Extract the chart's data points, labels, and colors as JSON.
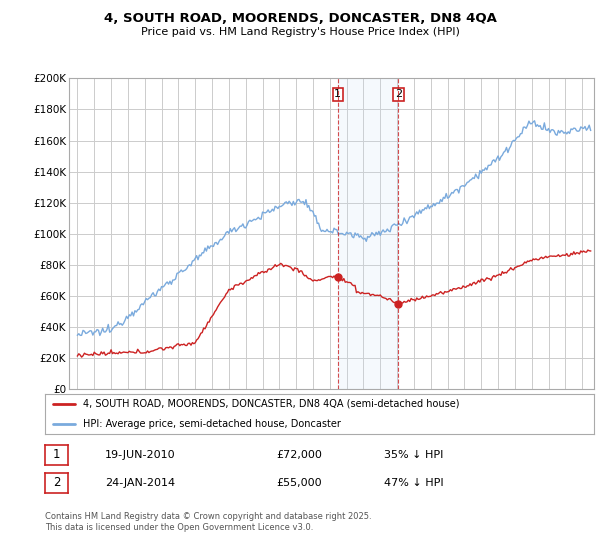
{
  "title_line1": "4, SOUTH ROAD, MOORENDS, DONCASTER, DN8 4QA",
  "title_line2": "Price paid vs. HM Land Registry's House Price Index (HPI)",
  "background_color": "#ffffff",
  "plot_bg_color": "#ffffff",
  "grid_color": "#cccccc",
  "hpi_color": "#7aaadd",
  "price_color": "#cc2222",
  "marker1_x": 2010.47,
  "marker2_x": 2014.07,
  "marker1_price": 72000,
  "marker2_price": 55000,
  "legend_label1": "4, SOUTH ROAD, MOORENDS, DONCASTER, DN8 4QA (semi-detached house)",
  "legend_label2": "HPI: Average price, semi-detached house, Doncaster",
  "table_row1": [
    "1",
    "19-JUN-2010",
    "£72,000",
    "35% ↓ HPI"
  ],
  "table_row2": [
    "2",
    "24-JAN-2014",
    "£55,000",
    "47% ↓ HPI"
  ],
  "footnote": "Contains HM Land Registry data © Crown copyright and database right 2025.\nThis data is licensed under the Open Government Licence v3.0.",
  "ylim": [
    0,
    200000
  ],
  "xlim_start": 1994.5,
  "xlim_end": 2025.7,
  "yticks": [
    0,
    20000,
    40000,
    60000,
    80000,
    100000,
    120000,
    140000,
    160000,
    180000,
    200000
  ],
  "ytick_labels": [
    "£0",
    "£20K",
    "£40K",
    "£60K",
    "£80K",
    "£100K",
    "£120K",
    "£140K",
    "£160K",
    "£180K",
    "£200K"
  ]
}
